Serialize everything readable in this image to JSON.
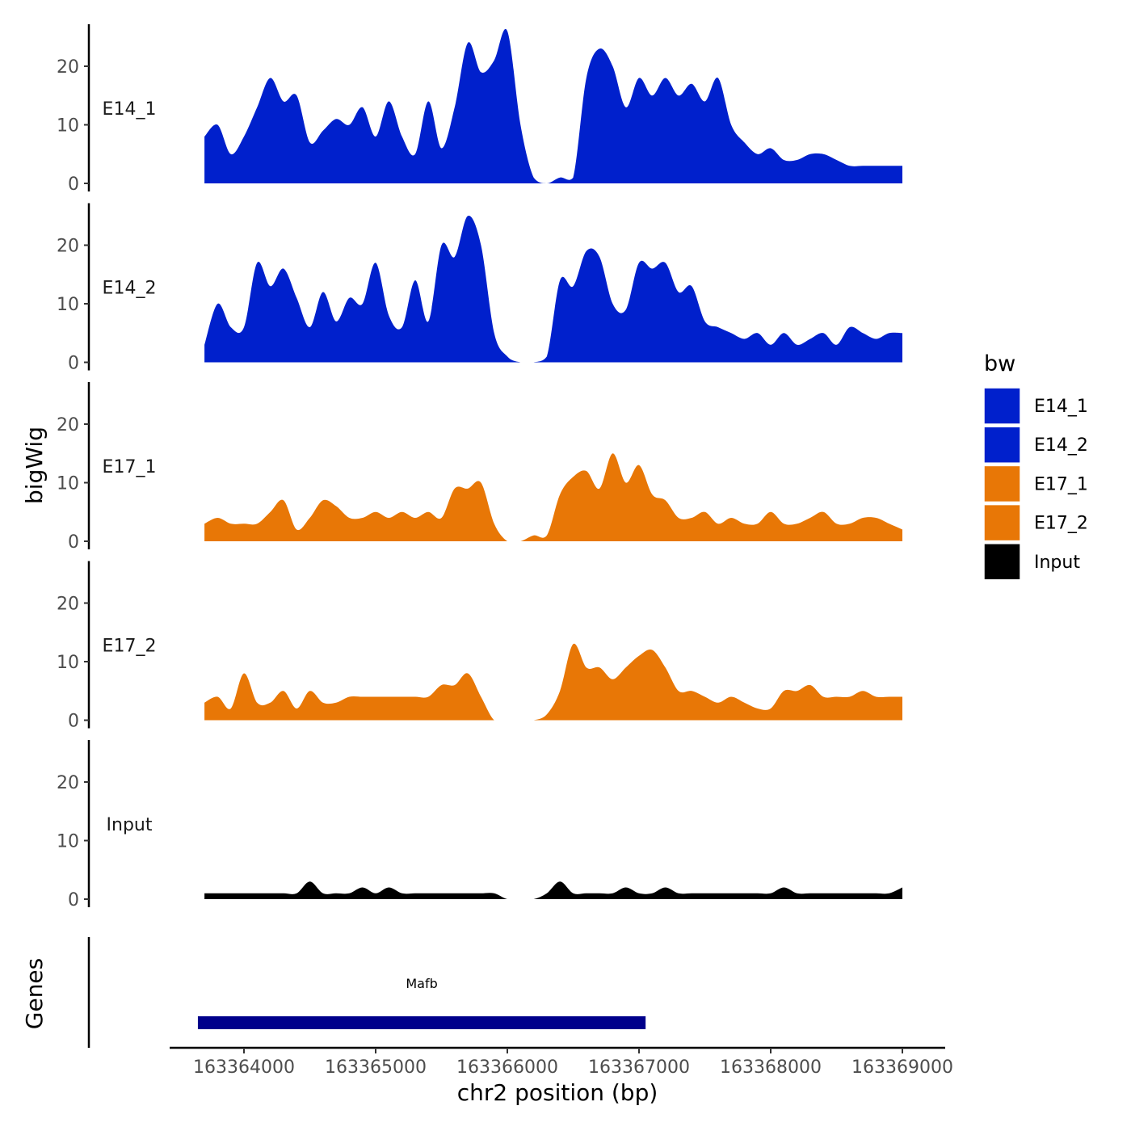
{
  "chart_data": {
    "type": "area",
    "subtype": "genome-browser-coverage-tracks",
    "title": "",
    "xlabel": "chr2 position (bp)",
    "ylabel": "bigWig",
    "genes_label": "Genes",
    "xlim": [
      163363700,
      163369300
    ],
    "ylim": [
      0,
      26
    ],
    "x_ticks": [
      163364000,
      163365000,
      163366000,
      163367000,
      163368000,
      163369000
    ],
    "x_tick_labels": [
      "163364000",
      "163365000",
      "163366000",
      "163367000",
      "163368000",
      "163369000"
    ],
    "y_ticks": [
      0,
      10,
      20
    ],
    "y_tick_labels": [
      "0",
      "10",
      "20"
    ],
    "legend": {
      "title": "bw",
      "entries": [
        {
          "label": "E14_1",
          "color": "#0020cc"
        },
        {
          "label": "E14_2",
          "color": "#0020cc"
        },
        {
          "label": "E17_1",
          "color": "#e87706"
        },
        {
          "label": "E17_2",
          "color": "#e87706"
        },
        {
          "label": "Input",
          "color": "#000000"
        }
      ]
    },
    "series": [
      {
        "name": "E14_1",
        "color": "#0020cc",
        "x": [
          163363700,
          163363800,
          163363900,
          163364000,
          163364100,
          163364200,
          163364300,
          163364400,
          163364500,
          163364600,
          163364700,
          163364800,
          163364900,
          163365000,
          163365100,
          163365200,
          163365300,
          163365400,
          163365500,
          163365600,
          163365700,
          163365800,
          163365900,
          163366000,
          163366100,
          163366200,
          163366300,
          163366400,
          163366500,
          163366600,
          163366700,
          163366800,
          163366900,
          163367000,
          163367100,
          163367200,
          163367300,
          163367400,
          163367500,
          163367600,
          163367700,
          163367800,
          163367900,
          163368000,
          163368100,
          163368200,
          163368300,
          163368400,
          163368500,
          163368600,
          163368700,
          163368800,
          163368900,
          163369000
        ],
        "values": [
          8,
          10,
          5,
          8,
          13,
          18,
          14,
          15,
          7,
          9,
          11,
          10,
          13,
          8,
          14,
          8,
          5,
          14,
          6,
          13,
          24,
          19,
          21,
          26,
          10,
          1,
          0,
          1,
          1,
          18,
          23,
          20,
          13,
          18,
          15,
          18,
          15,
          17,
          14,
          18,
          10,
          7,
          5,
          6,
          4,
          4,
          5,
          5,
          4,
          3,
          3,
          3,
          3,
          3
        ]
      },
      {
        "name": "E14_2",
        "color": "#0020cc",
        "x": [
          163363700,
          163363800,
          163363900,
          163364000,
          163364100,
          163364200,
          163364300,
          163364400,
          163364500,
          163364600,
          163364700,
          163364800,
          163364900,
          163365000,
          163365100,
          163365200,
          163365300,
          163365400,
          163365500,
          163365600,
          163365700,
          163365800,
          163365900,
          163366000,
          163366100,
          163366200,
          163366300,
          163366400,
          163366500,
          163366600,
          163366700,
          163366800,
          163366900,
          163367000,
          163367100,
          163367200,
          163367300,
          163367400,
          163367500,
          163367600,
          163367700,
          163367800,
          163367900,
          163368000,
          163368100,
          163368200,
          163368300,
          163368400,
          163368500,
          163368600,
          163368700,
          163368800,
          163368900,
          163369000
        ],
        "values": [
          3,
          10,
          6,
          6,
          17,
          13,
          16,
          11,
          6,
          12,
          7,
          11,
          10,
          17,
          8,
          6,
          14,
          7,
          20,
          18,
          25,
          20,
          5,
          1,
          0,
          0,
          1,
          14,
          13,
          19,
          18,
          10,
          9,
          17,
          16,
          17,
          12,
          13,
          7,
          6,
          5,
          4,
          5,
          3,
          5,
          3,
          4,
          5,
          3,
          6,
          5,
          4,
          5,
          5
        ]
      },
      {
        "name": "E17_1",
        "color": "#e87706",
        "x": [
          163363700,
          163363800,
          163363900,
          163364000,
          163364100,
          163364200,
          163364300,
          163364400,
          163364500,
          163364600,
          163364700,
          163364800,
          163364900,
          163365000,
          163365100,
          163365200,
          163365300,
          163365400,
          163365500,
          163365600,
          163365700,
          163365800,
          163365900,
          163366000,
          163366100,
          163366200,
          163366300,
          163366400,
          163366500,
          163366600,
          163366700,
          163366800,
          163366900,
          163367000,
          163367100,
          163367200,
          163367300,
          163367400,
          163367500,
          163367600,
          163367700,
          163367800,
          163367900,
          163368000,
          163368100,
          163368200,
          163368300,
          163368400,
          163368500,
          163368600,
          163368700,
          163368800,
          163368900,
          163369000
        ],
        "values": [
          3,
          4,
          3,
          3,
          3,
          5,
          7,
          2,
          4,
          7,
          6,
          4,
          4,
          5,
          4,
          5,
          4,
          5,
          4,
          9,
          9,
          10,
          3,
          0,
          0,
          1,
          1,
          8,
          11,
          12,
          9,
          15,
          10,
          13,
          8,
          7,
          4,
          4,
          5,
          3,
          4,
          3,
          3,
          5,
          3,
          3,
          4,
          5,
          3,
          3,
          4,
          4,
          3,
          2
        ]
      },
      {
        "name": "E17_2",
        "color": "#e87706",
        "x": [
          163363700,
          163363800,
          163363900,
          163364000,
          163364100,
          163364200,
          163364300,
          163364400,
          163364500,
          163364600,
          163364700,
          163364800,
          163364900,
          163365000,
          163365100,
          163365200,
          163365300,
          163365400,
          163365500,
          163365600,
          163365700,
          163365800,
          163365900,
          163366000,
          163366100,
          163366200,
          163366300,
          163366400,
          163366500,
          163366600,
          163366700,
          163366800,
          163366900,
          163367000,
          163367100,
          163367200,
          163367300,
          163367400,
          163367500,
          163367600,
          163367700,
          163367800,
          163367900,
          163368000,
          163368100,
          163368200,
          163368300,
          163368400,
          163368500,
          163368600,
          163368700,
          163368800,
          163368900,
          163369000
        ],
        "values": [
          3,
          4,
          2,
          8,
          3,
          3,
          5,
          2,
          5,
          3,
          3,
          4,
          4,
          4,
          4,
          4,
          4,
          4,
          6,
          6,
          8,
          4,
          0,
          0,
          0,
          0,
          1,
          5,
          13,
          9,
          9,
          7,
          9,
          11,
          12,
          9,
          5,
          5,
          4,
          3,
          4,
          3,
          2,
          2,
          5,
          5,
          6,
          4,
          4,
          4,
          5,
          4,
          4,
          4
        ]
      },
      {
        "name": "Input",
        "color": "#000000",
        "x": [
          163363700,
          163363800,
          163363900,
          163364000,
          163364100,
          163364200,
          163364300,
          163364400,
          163364500,
          163364600,
          163364700,
          163364800,
          163364900,
          163365000,
          163365100,
          163365200,
          163365300,
          163365400,
          163365500,
          163365600,
          163365700,
          163365800,
          163365900,
          163366000,
          163366100,
          163366200,
          163366300,
          163366400,
          163366500,
          163366600,
          163366700,
          163366800,
          163366900,
          163367000,
          163367100,
          163367200,
          163367300,
          163367400,
          163367500,
          163367600,
          163367700,
          163367800,
          163367900,
          163368000,
          163368100,
          163368200,
          163368300,
          163368400,
          163368500,
          163368600,
          163368700,
          163368800,
          163368900,
          163369000
        ],
        "values": [
          1,
          1,
          1,
          1,
          1,
          1,
          1,
          1,
          3,
          1,
          1,
          1,
          2,
          1,
          2,
          1,
          1,
          1,
          1,
          1,
          1,
          1,
          1,
          0,
          0,
          0,
          1,
          3,
          1,
          1,
          1,
          1,
          2,
          1,
          1,
          2,
          1,
          1,
          1,
          1,
          1,
          1,
          1,
          1,
          2,
          1,
          1,
          1,
          1,
          1,
          1,
          1,
          1,
          2
        ]
      }
    ],
    "genes": [
      {
        "name": "Mafb",
        "start": 163363650,
        "end": 163367050,
        "color": "#00008b"
      }
    ]
  }
}
